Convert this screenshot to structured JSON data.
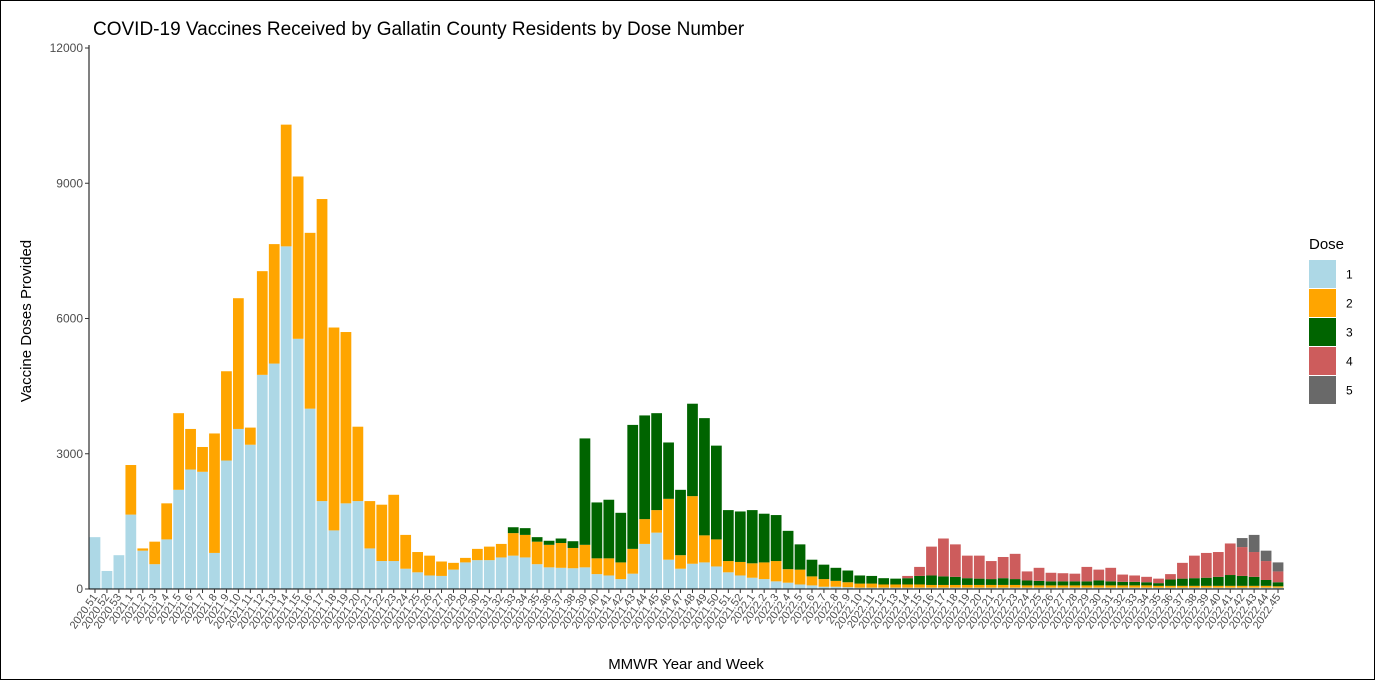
{
  "chart_data": {
    "type": "bar",
    "stacked": true,
    "title": "COVID-19 Vaccines Received by Gallatin County Residents by Dose Number",
    "xlabel": "MMWR Year and Week",
    "ylabel": "Vaccine Doses Provided",
    "ylim": [
      0,
      12000
    ],
    "yticks": [
      0,
      3000,
      6000,
      9000,
      12000
    ],
    "grid": false,
    "legend": {
      "title": "Dose",
      "position": "right"
    },
    "categories": [
      "2020.51",
      "2020.52",
      "2020.53",
      "2021.1",
      "2021.2",
      "2021.3",
      "2021.4",
      "2021.5",
      "2021.6",
      "2021.7",
      "2021.8",
      "2021.9",
      "2021.10",
      "2021.11",
      "2021.12",
      "2021.13",
      "2021.14",
      "2021.15",
      "2021.16",
      "2021.17",
      "2021.18",
      "2021.19",
      "2021.20",
      "2021.21",
      "2021.22",
      "2021.23",
      "2021.24",
      "2021.25",
      "2021.26",
      "2021.27",
      "2021.28",
      "2021.29",
      "2021.30",
      "2021.31",
      "2021.32",
      "2021.33",
      "2021.34",
      "2021.35",
      "2021.36",
      "2021.37",
      "2021.38",
      "2021.39",
      "2021.40",
      "2021.41",
      "2021.42",
      "2021.43",
      "2021.44",
      "2021.45",
      "2021.46",
      "2021.47",
      "2021.48",
      "2021.49",
      "2021.50",
      "2021.51",
      "2021.52",
      "2022.1",
      "2022.2",
      "2022.3",
      "2022.4",
      "2022.5",
      "2022.6",
      "2022.7",
      "2022.8",
      "2022.9",
      "2022.10",
      "2022.11",
      "2022.12",
      "2022.13",
      "2022.14",
      "2022.15",
      "2022.16",
      "2022.17",
      "2022.18",
      "2022.19",
      "2022.20",
      "2022.21",
      "2022.22",
      "2022.23",
      "2022.24",
      "2022.25",
      "2022.26",
      "2022.27",
      "2022.28",
      "2022.29",
      "2022.30",
      "2022.31",
      "2022.32",
      "2022.33",
      "2022.34",
      "2022.35",
      "2022.36",
      "2022.37",
      "2022.38",
      "2022.39",
      "2022.40",
      "2022.41",
      "2022.42",
      "2022.43",
      "2022.44",
      "2022.45"
    ],
    "series": [
      {
        "name": "1",
        "color": "#ADD8E6",
        "values": [
          1150,
          400,
          750,
          1650,
          850,
          550,
          1100,
          2200,
          2650,
          2600,
          800,
          2850,
          3550,
          3200,
          4750,
          5000,
          7600,
          5550,
          4000,
          1950,
          1300,
          1900,
          1950,
          900,
          620,
          620,
          450,
          370,
          300,
          290,
          430,
          590,
          640,
          640,
          700,
          740,
          700,
          550,
          480,
          470,
          460,
          480,
          330,
          300,
          220,
          340,
          1000,
          1250,
          650,
          450,
          560,
          590,
          500,
          370,
          300,
          250,
          220,
          170,
          140,
          100,
          80,
          50,
          50,
          40,
          30,
          30,
          30,
          30,
          30,
          30,
          30,
          30,
          30,
          30,
          30,
          30,
          30,
          30,
          30,
          30,
          30,
          30,
          30,
          30,
          30,
          30,
          30,
          30,
          30,
          30,
          30,
          30,
          30,
          30,
          30,
          30,
          30,
          30,
          30,
          30
        ]
      },
      {
        "name": "2",
        "color": "#FFA500",
        "values": [
          0,
          0,
          0,
          1100,
          50,
          500,
          800,
          1700,
          900,
          550,
          2650,
          1980,
          2900,
          380,
          2300,
          2650,
          2700,
          3600,
          3900,
          6700,
          4500,
          3800,
          1650,
          1050,
          1250,
          1470,
          750,
          450,
          440,
          320,
          150,
          100,
          250,
          300,
          300,
          500,
          500,
          500,
          500,
          550,
          450,
          500,
          350,
          380,
          370,
          550,
          550,
          500,
          1350,
          300,
          1500,
          600,
          600,
          250,
          300,
          320,
          370,
          450,
          300,
          330,
          200,
          170,
          130,
          110,
          90,
          90,
          70,
          70,
          70,
          70,
          60,
          60,
          60,
          60,
          60,
          60,
          60,
          60,
          50,
          50,
          50,
          50,
          50,
          50,
          50,
          50,
          50,
          50,
          50,
          40,
          40,
          40,
          40,
          40,
          40,
          40,
          40,
          40,
          40,
          30
        ]
      },
      {
        "name": "3",
        "color": "#006400",
        "values": [
          0,
          0,
          0,
          0,
          0,
          0,
          0,
          0,
          0,
          0,
          0,
          0,
          0,
          0,
          0,
          0,
          0,
          0,
          0,
          0,
          0,
          0,
          0,
          0,
          0,
          0,
          0,
          0,
          0,
          0,
          0,
          0,
          0,
          0,
          0,
          130,
          150,
          100,
          90,
          100,
          150,
          2360,
          1240,
          1300,
          1100,
          2750,
          2300,
          2150,
          1250,
          1450,
          2050,
          2600,
          2080,
          1130,
          1120,
          1180,
          1080,
          1020,
          850,
          560,
          370,
          320,
          290,
          260,
          180,
          170,
          140,
          130,
          140,
          190,
          210,
          190,
          180,
          150,
          140,
          130,
          150,
          130,
          110,
          100,
          90,
          90,
          90,
          90,
          110,
          90,
          80,
          80,
          70,
          60,
          140,
          160,
          170,
          180,
          200,
          240,
          220,
          200,
          130,
          90
        ]
      },
      {
        "name": "4",
        "color": "#CD5C5C",
        "values": [
          0,
          0,
          0,
          0,
          0,
          0,
          0,
          0,
          0,
          0,
          0,
          0,
          0,
          0,
          0,
          0,
          0,
          0,
          0,
          0,
          0,
          0,
          0,
          0,
          0,
          0,
          0,
          0,
          0,
          0,
          0,
          0,
          0,
          0,
          0,
          0,
          0,
          0,
          0,
          0,
          0,
          0,
          0,
          0,
          0,
          0,
          0,
          0,
          0,
          0,
          0,
          0,
          0,
          0,
          0,
          0,
          0,
          0,
          0,
          0,
          0,
          0,
          0,
          0,
          0,
          0,
          0,
          0,
          50,
          200,
          640,
          840,
          720,
          500,
          510,
          400,
          470,
          560,
          200,
          290,
          190,
          180,
          170,
          320,
          240,
          300,
          160,
          140,
          120,
          100,
          120,
          350,
          500,
          550,
          550,
          700,
          640,
          550,
          420,
          240
        ]
      },
      {
        "name": "5",
        "color": "#696969",
        "values": [
          0,
          0,
          0,
          0,
          0,
          0,
          0,
          0,
          0,
          0,
          0,
          0,
          0,
          0,
          0,
          0,
          0,
          0,
          0,
          0,
          0,
          0,
          0,
          0,
          0,
          0,
          0,
          0,
          0,
          0,
          0,
          0,
          0,
          0,
          0,
          0,
          0,
          0,
          0,
          0,
          0,
          0,
          0,
          0,
          0,
          0,
          0,
          0,
          0,
          0,
          0,
          0,
          0,
          0,
          0,
          0,
          0,
          0,
          0,
          0,
          0,
          0,
          0,
          0,
          0,
          0,
          0,
          0,
          0,
          0,
          0,
          0,
          0,
          0,
          0,
          0,
          0,
          0,
          0,
          0,
          0,
          0,
          0,
          0,
          0,
          0,
          0,
          0,
          0,
          0,
          0,
          0,
          0,
          0,
          0,
          0,
          200,
          380,
          230,
          200
        ]
      }
    ]
  }
}
